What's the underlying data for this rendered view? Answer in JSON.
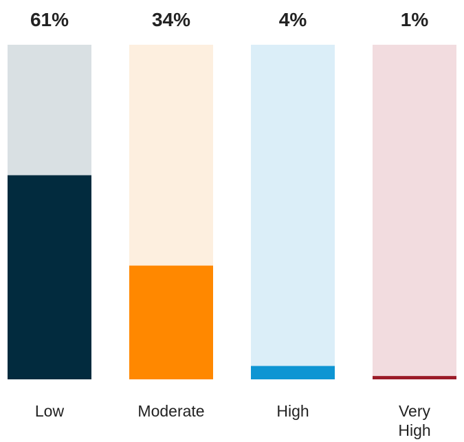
{
  "chart_data": {
    "type": "bar",
    "orientation": "vertical",
    "stacked_to_100": true,
    "categories": [
      "Low",
      "Moderate",
      "High",
      "Very High"
    ],
    "category_lines": [
      [
        "Low"
      ],
      [
        "Moderate"
      ],
      [
        "High"
      ],
      [
        "Very",
        "High"
      ]
    ],
    "values": [
      61,
      34,
      4,
      1
    ],
    "value_labels": [
      "61%",
      "34%",
      "4%",
      "1%"
    ],
    "ylim": [
      0,
      100
    ],
    "fill_colors": [
      "#022b3e",
      "#ff8800",
      "#0e95d3",
      "#9b1b28"
    ],
    "track_colors": [
      "#d9e0e3",
      "#fdefdf",
      "#dbeef8",
      "#f2dcdf"
    ],
    "grid": false,
    "legend": "none"
  }
}
